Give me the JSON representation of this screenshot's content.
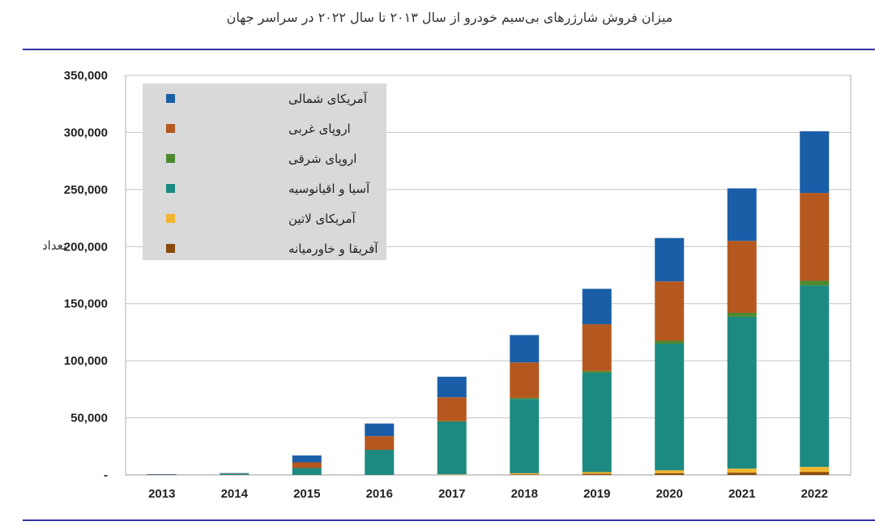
{
  "chart_data": {
    "type": "bar",
    "stacked": true,
    "title": "میزان فروش شارژرهای بی‌سیم خودرو از سال ۲۰۱۳ تا سال ۲۰۲۲ در سراسر جهان",
    "xlabel": "",
    "ylabel": "تعداد",
    "ylim": [
      0,
      350000
    ],
    "yticks": [
      0,
      50000,
      100000,
      150000,
      200000,
      250000,
      300000,
      350000
    ],
    "ytick_labels": [
      "-",
      "50,000",
      "100,000",
      "150,000",
      "200,000",
      "250,000",
      "300,000",
      "350,000"
    ],
    "grid": true,
    "legend_position": "top-left",
    "categories": [
      "2013",
      "2014",
      "2015",
      "2016",
      "2017",
      "2018",
      "2019",
      "2020",
      "2021",
      "2022"
    ],
    "series": [
      {
        "name": "آفریقا و خاورمیانه",
        "color": "#8B4A0C",
        "values": [
          0,
          0,
          0,
          0,
          0,
          500,
          1000,
          1500,
          2000,
          2500
        ]
      },
      {
        "name": "آمریکای لاتین",
        "color": "#F2B630",
        "values": [
          0,
          0,
          0,
          0,
          500,
          1000,
          1500,
          2500,
          3500,
          4500
        ]
      },
      {
        "name": "آسیا و اقیانوسیه",
        "color": "#1C8A80",
        "values": [
          400,
          1000,
          6000,
          22000,
          46000,
          65000,
          87000,
          111000,
          133000,
          159000
        ]
      },
      {
        "name": "اروپای شرقی",
        "color": "#4D8A2F",
        "values": [
          0,
          0,
          0,
          0,
          500,
          1000,
          1500,
          2500,
          3500,
          4000
        ]
      },
      {
        "name": "اروپای غربی",
        "color": "#B5581F",
        "values": [
          100,
          300,
          5000,
          12000,
          21000,
          31000,
          41000,
          52000,
          63000,
          77000
        ]
      },
      {
        "name": "آمریکای شمالی",
        "color": "#1A5EA8",
        "values": [
          100,
          300,
          6000,
          11000,
          18000,
          24000,
          31000,
          38000,
          46000,
          54000
        ]
      }
    ]
  }
}
